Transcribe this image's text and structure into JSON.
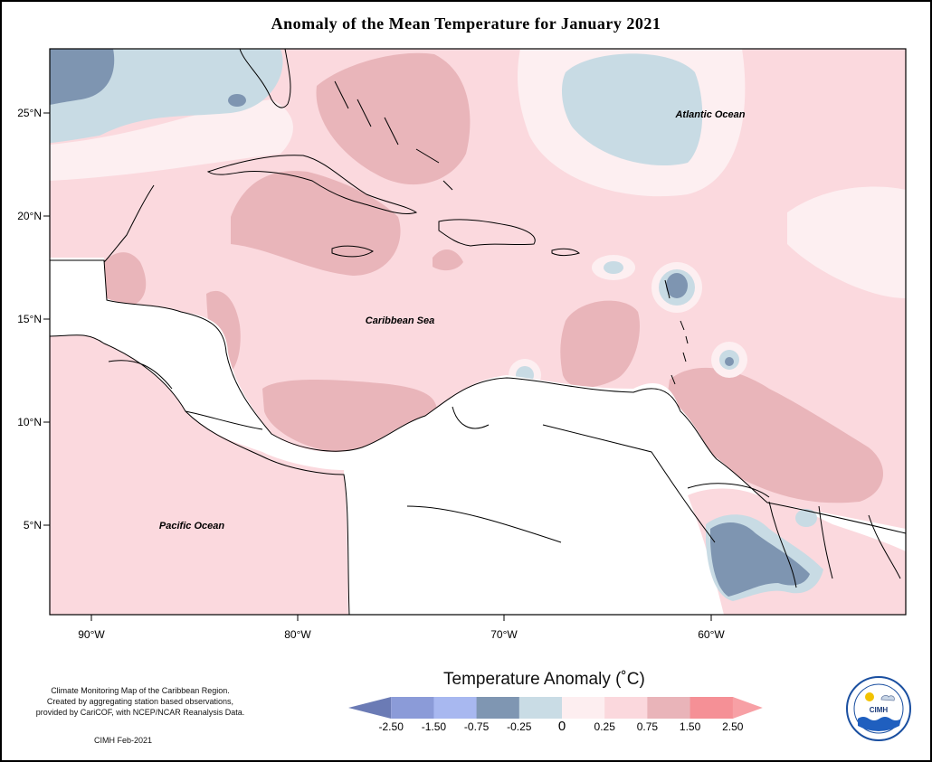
{
  "title": "Anomaly of the Mean Temperature for January 2021",
  "map": {
    "labels": {
      "atlantic": "Atlantic Ocean",
      "caribbean": "Caribbean Sea",
      "pacific": "Pacific Ocean"
    },
    "lat_ticks": [
      "25°N",
      "20°N",
      "15°N",
      "10°N",
      "5°N"
    ],
    "lon_ticks": [
      "90°W",
      "80°W",
      "70°W",
      "60°W"
    ]
  },
  "credit": {
    "lines": [
      "Climate Monitoring Map of the Caribbean Region.",
      "Created by aggregating station based observations,",
      "provided by CariCOF, with NCEP/NCAR Reanalysis Data."
    ],
    "date": "CIMH Feb-2021"
  },
  "legend": {
    "title": "Temperature Anomaly (˚C)",
    "labels": [
      "-2.50",
      "-1.50",
      "-0.75",
      "-0.25",
      "0",
      "0.25",
      "0.75",
      "1.50",
      "2.50"
    ],
    "colors": [
      "#6b7bb5",
      "#8b9bd8",
      "#a8b8f0",
      "#7f96b2",
      "#c9dce5",
      "#fdeef0",
      "#fbd8dd",
      "#e9b4b9",
      "#f59096",
      "#f7a0a5"
    ]
  },
  "logo": {
    "text": "CIMH"
  }
}
